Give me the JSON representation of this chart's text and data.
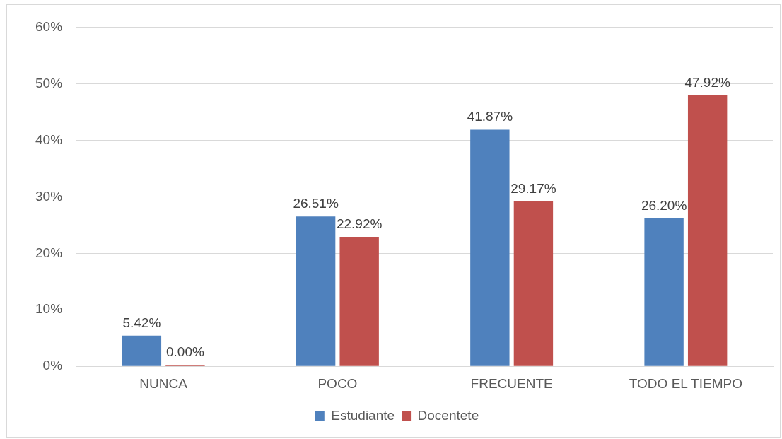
{
  "chart_data": {
    "type": "bar",
    "categories": [
      "NUNCA",
      "POCO",
      "FRECUENTE",
      "TODO EL TIEMPO"
    ],
    "series": [
      {
        "name": "Estudiante",
        "color": "#4f81bd",
        "values": [
          5.42,
          26.51,
          41.87,
          26.2
        ],
        "value_labels": [
          "5.42%",
          "26.51%",
          "41.87%",
          "26.20%"
        ]
      },
      {
        "name": "Docentete",
        "color": "#c0504d",
        "values": [
          0,
          22.92,
          29.17,
          47.92
        ],
        "value_labels": [
          "0.00%",
          "22.92%",
          "29.17%",
          "47.92%"
        ]
      }
    ],
    "ylim": [
      0,
      60
    ],
    "yticks": [
      {
        "value": 0,
        "label": "0%"
      },
      {
        "value": 10,
        "label": "10%"
      },
      {
        "value": 20,
        "label": "20%"
      },
      {
        "value": 30,
        "label": "30%"
      },
      {
        "value": 40,
        "label": "40%"
      },
      {
        "value": 50,
        "label": "50%"
      },
      {
        "value": 60,
        "label": "60%"
      }
    ],
    "grid": "y",
    "legend": "bottom"
  }
}
